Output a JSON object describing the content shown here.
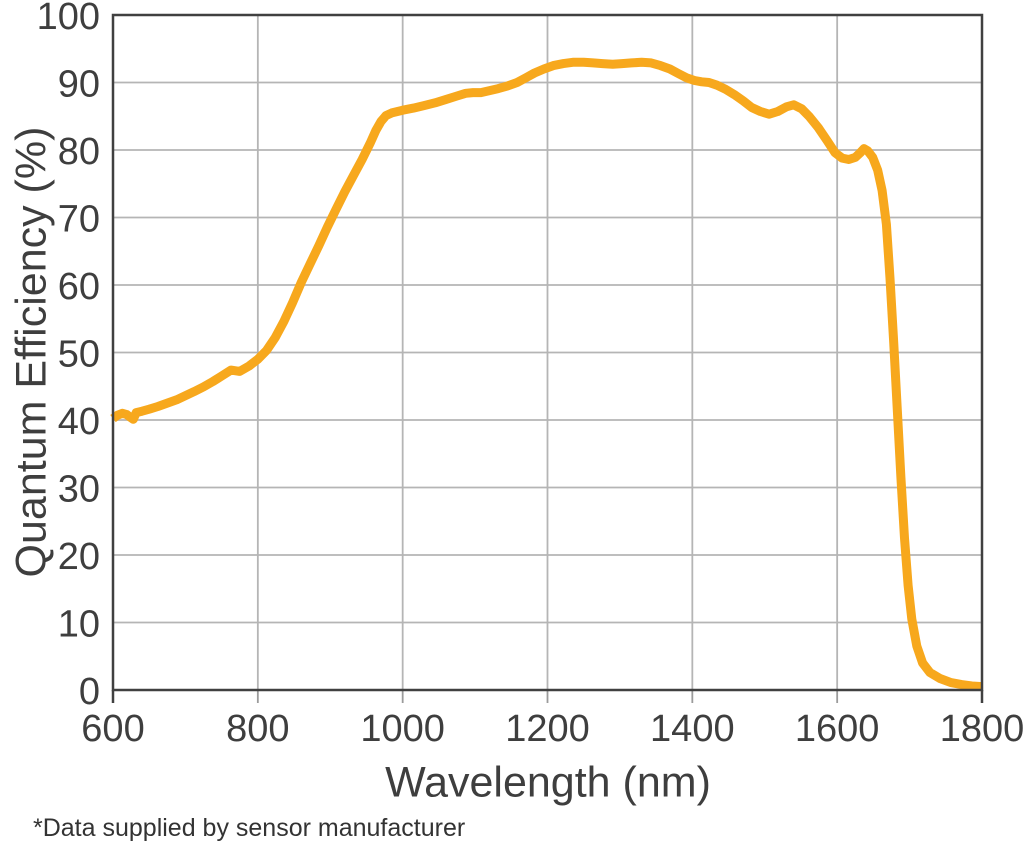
{
  "footnote": "*Data supplied by sensor manufacturer",
  "colors": {
    "curve": "#F7A81D",
    "axis": "#404040",
    "grid": "#B5B5B5",
    "tick": "#9B9B9B",
    "text": "#3E3E3E"
  },
  "chart_data": {
    "type": "line",
    "title": "",
    "xlabel": "Wavelength (nm)",
    "ylabel": "Quantum Efficiency (%)",
    "xlim": [
      600,
      1800
    ],
    "ylim": [
      0,
      100
    ],
    "x_ticks": [
      600,
      800,
      1000,
      1200,
      1400,
      1600,
      1800
    ],
    "y_ticks": [
      0,
      10,
      20,
      30,
      40,
      50,
      60,
      70,
      80,
      90,
      100
    ],
    "grid": true,
    "legend": false,
    "series": [
      {
        "name": "Quantum efficiency",
        "points": [
          [
            600,
            40.2
          ],
          [
            606,
            40.7
          ],
          [
            613,
            41.0
          ],
          [
            619,
            40.8
          ],
          [
            624,
            40.4
          ],
          [
            628,
            40.1
          ],
          [
            632,
            41.1
          ],
          [
            640,
            41.3
          ],
          [
            650,
            41.6
          ],
          [
            662,
            42.0
          ],
          [
            675,
            42.5
          ],
          [
            688,
            43.0
          ],
          [
            700,
            43.6
          ],
          [
            712,
            44.2
          ],
          [
            725,
            44.9
          ],
          [
            738,
            45.7
          ],
          [
            750,
            46.5
          ],
          [
            763,
            47.4
          ],
          [
            775,
            47.2
          ],
          [
            788,
            48.0
          ],
          [
            800,
            49.0
          ],
          [
            812,
            50.3
          ],
          [
            824,
            52.2
          ],
          [
            836,
            54.6
          ],
          [
            848,
            57.4
          ],
          [
            860,
            60.4
          ],
          [
            872,
            63.1
          ],
          [
            884,
            65.8
          ],
          [
            896,
            68.6
          ],
          [
            908,
            71.2
          ],
          [
            920,
            73.8
          ],
          [
            932,
            76.2
          ],
          [
            944,
            78.6
          ],
          [
            955,
            81.0
          ],
          [
            963,
            82.9
          ],
          [
            970,
            84.2
          ],
          [
            977,
            85.1
          ],
          [
            985,
            85.5
          ],
          [
            1000,
            85.9
          ],
          [
            1015,
            86.2
          ],
          [
            1030,
            86.6
          ],
          [
            1045,
            87.0
          ],
          [
            1060,
            87.5
          ],
          [
            1075,
            88.0
          ],
          [
            1087,
            88.4
          ],
          [
            1097,
            88.5
          ],
          [
            1108,
            88.5
          ],
          [
            1120,
            88.8
          ],
          [
            1132,
            89.1
          ],
          [
            1145,
            89.5
          ],
          [
            1158,
            90.0
          ],
          [
            1170,
            90.7
          ],
          [
            1182,
            91.4
          ],
          [
            1195,
            92.0
          ],
          [
            1208,
            92.5
          ],
          [
            1222,
            92.8
          ],
          [
            1235,
            93.0
          ],
          [
            1250,
            93.0
          ],
          [
            1263,
            92.9
          ],
          [
            1276,
            92.8
          ],
          [
            1290,
            92.7
          ],
          [
            1303,
            92.8
          ],
          [
            1316,
            92.9
          ],
          [
            1330,
            93.0
          ],
          [
            1343,
            92.9
          ],
          [
            1356,
            92.5
          ],
          [
            1369,
            92.0
          ],
          [
            1381,
            91.3
          ],
          [
            1392,
            90.7
          ],
          [
            1403,
            90.3
          ],
          [
            1413,
            90.1
          ],
          [
            1423,
            90.0
          ],
          [
            1434,
            89.6
          ],
          [
            1446,
            89.0
          ],
          [
            1458,
            88.2
          ],
          [
            1470,
            87.3
          ],
          [
            1482,
            86.3
          ],
          [
            1494,
            85.7
          ],
          [
            1506,
            85.3
          ],
          [
            1518,
            85.7
          ],
          [
            1530,
            86.4
          ],
          [
            1540,
            86.7
          ],
          [
            1551,
            86.1
          ],
          [
            1562,
            84.9
          ],
          [
            1574,
            83.3
          ],
          [
            1586,
            81.4
          ],
          [
            1597,
            79.6
          ],
          [
            1607,
            78.8
          ],
          [
            1616,
            78.6
          ],
          [
            1625,
            78.9
          ],
          [
            1632,
            79.6
          ],
          [
            1637,
            80.2
          ],
          [
            1642,
            79.9
          ],
          [
            1649,
            78.9
          ],
          [
            1656,
            77.0
          ],
          [
            1662,
            74.0
          ],
          [
            1668,
            69.0
          ],
          [
            1673,
            61.0
          ],
          [
            1678,
            51.5
          ],
          [
            1683,
            41.5
          ],
          [
            1688,
            31.5
          ],
          [
            1693,
            22.5
          ],
          [
            1698,
            15.5
          ],
          [
            1703,
            10.5
          ],
          [
            1710,
            6.5
          ],
          [
            1718,
            4.0
          ],
          [
            1728,
            2.6
          ],
          [
            1742,
            1.7
          ],
          [
            1757,
            1.1
          ],
          [
            1772,
            0.8
          ],
          [
            1786,
            0.6
          ],
          [
            1800,
            0.5
          ]
        ]
      }
    ]
  }
}
